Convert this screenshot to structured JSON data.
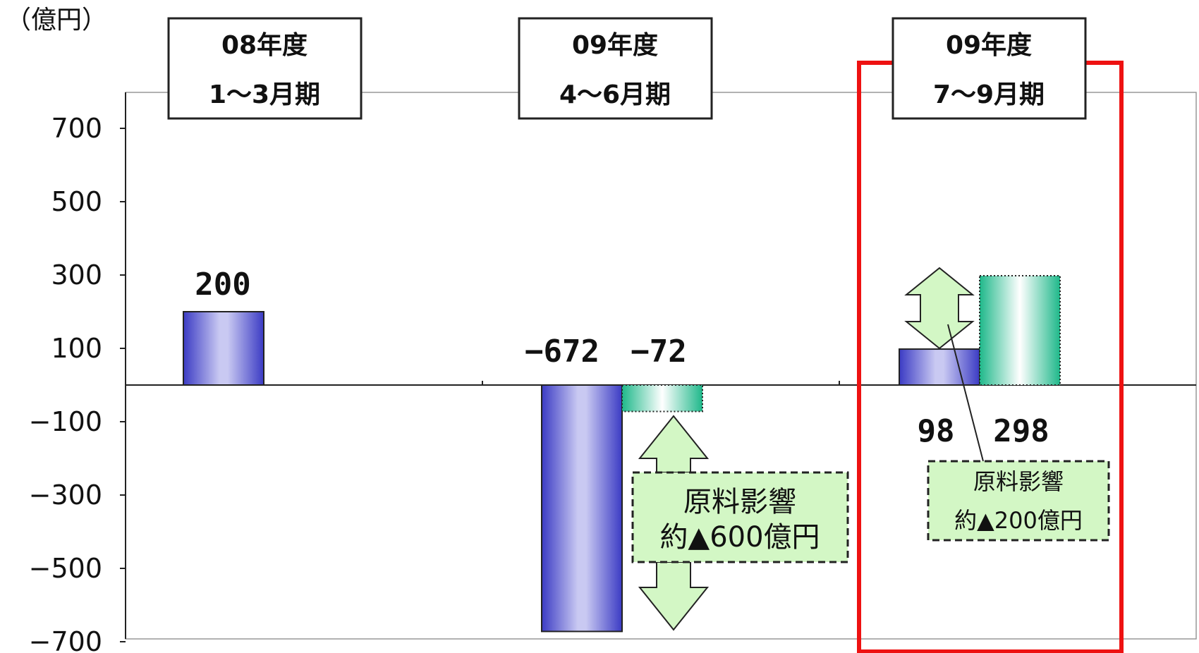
{
  "unit_label": "（億円）",
  "chart_data": {
    "type": "bar",
    "ylim": [
      -700,
      800
    ],
    "yticks": [
      700,
      500,
      300,
      100,
      -100,
      -300,
      -500,
      -700
    ],
    "ytick_labels": [
      "700",
      "500",
      "300",
      "100",
      "−100",
      "−300",
      "−500",
      "−700"
    ],
    "grid": false,
    "categories": [
      {
        "line1": "08年度",
        "line2": "1～3月期"
      },
      {
        "line1": "09年度",
        "line2": "4～6月期"
      },
      {
        "line1": "09年度",
        "line2": "7～9月期"
      }
    ],
    "series": [
      {
        "values": [
          200,
          -672,
          98
        ],
        "labels": [
          "200",
          "−672",
          "98"
        ],
        "color": "#4a4ad0"
      },
      {
        "values": [
          null,
          -72,
          298
        ],
        "labels": [
          "",
          "−72",
          "298"
        ],
        "color": "#2fbf8f"
      }
    ],
    "highlight_category_index": 2,
    "highlight_color": "#ee1111"
  },
  "annotations": [
    {
      "line1": "原料影響",
      "line2": "約▲600億円"
    },
    {
      "line1": "原料影響",
      "line2": "約▲200億円"
    }
  ]
}
